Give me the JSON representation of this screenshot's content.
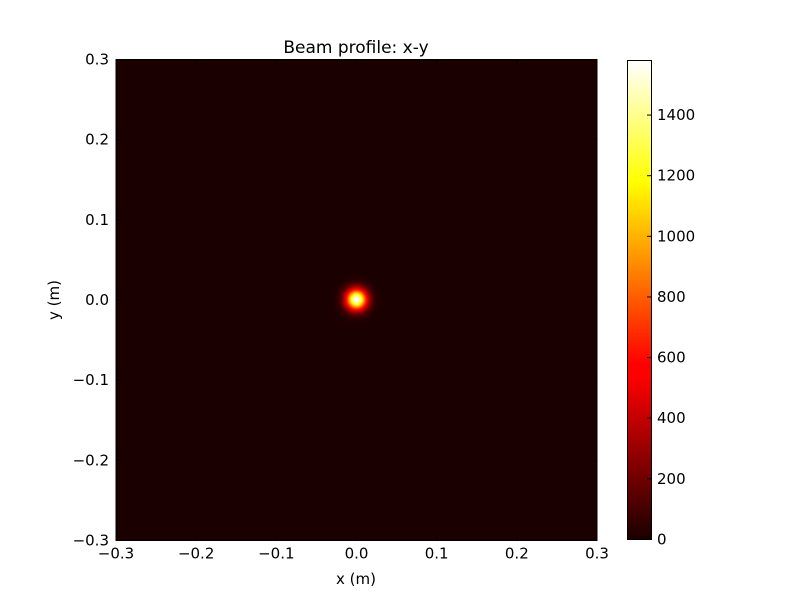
{
  "chart_data": {
    "type": "heatmap",
    "title": "Beam profile: x-y",
    "xlabel": "x (m)",
    "ylabel": "y (m)",
    "xlim": [
      -0.3,
      0.3
    ],
    "ylim": [
      -0.3,
      0.3
    ],
    "xticks": [
      "−0.3",
      "−0.2",
      "−0.1",
      "0.0",
      "0.1",
      "0.2",
      "0.3"
    ],
    "yticks": [
      "−0.3",
      "−0.2",
      "−0.1",
      "0.0",
      "0.1",
      "0.2",
      "0.3"
    ],
    "xtick_values": [
      -0.3,
      -0.2,
      -0.1,
      0,
      0.1,
      0.2,
      0.3
    ],
    "ytick_values": [
      -0.3,
      -0.2,
      -0.1,
      0,
      0.1,
      0.2,
      0.3
    ],
    "colormap": "hot",
    "peak": {
      "x": 0.0,
      "y": 0.0,
      "value": 1580,
      "sigma": 0.009
    },
    "colorbar": {
      "range": [
        0,
        1580
      ],
      "ticks": [
        "0",
        "200",
        "400",
        "600",
        "800",
        "1000",
        "1200",
        "1400"
      ],
      "tick_values": [
        0,
        200,
        400,
        600,
        800,
        1000,
        1200,
        1400
      ]
    },
    "grid": false
  }
}
